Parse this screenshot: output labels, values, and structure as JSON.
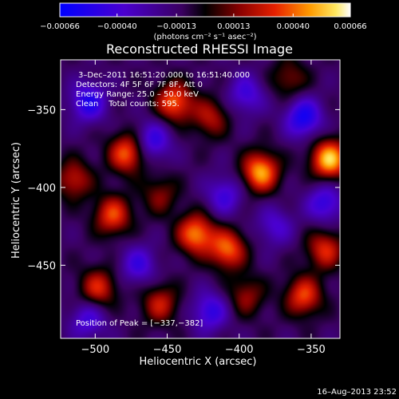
{
  "chart_data": {
    "type": "heatmap",
    "title": "Reconstructed RHESSI Image",
    "xlabel": "Heliocentric X (arcsec)",
    "ylabel": "Heliocentric Y (arcsec)",
    "xlim": [
      -524,
      -330
    ],
    "ylim": [
      -497,
      -318
    ],
    "xticks": [
      -500,
      -450,
      -400,
      -350
    ],
    "xtick_labels": [
      "−500",
      "−450",
      "−400",
      "−350"
    ],
    "yticks": [
      -350,
      -400,
      -450
    ],
    "ytick_labels": [
      "−350",
      "−400",
      "−450"
    ],
    "colorbar": {
      "range": [
        -0.00066,
        0.00066
      ],
      "ticks": [
        -0.00066,
        -0.0004,
        -0.00013,
        0.00013,
        0.0004,
        0.00066
      ],
      "tick_labels": [
        "−0.00066",
        "−0.00040",
        "−0.00013",
        "0.00013",
        "0.00040",
        "0.00066"
      ],
      "unit_label": "(photons cm⁻² s⁻¹ asec⁻²)"
    },
    "annotations": {
      "time": "3–Dec–2011 16:51:20.000 to 16:51:40.000",
      "detectors": "Detectors: 4F 5F 6F 7F 8F, Att 0",
      "energy": "Energy Range: 25.0 – 50.0 keV",
      "clean": "Clean    Total counts: 595.",
      "peak": "Position of Peak = [−337,−382]"
    },
    "sources": [
      {
        "x": -337,
        "y": -382,
        "value": 0.00066
      },
      {
        "x": -385,
        "y": -390,
        "value": 0.0006
      },
      {
        "x": -430,
        "y": -430,
        "value": 0.00055
      },
      {
        "x": -408,
        "y": -440,
        "value": 0.0005
      },
      {
        "x": -478,
        "y": -378,
        "value": 0.0005
      },
      {
        "x": -445,
        "y": -345,
        "value": 0.0005
      },
      {
        "x": -488,
        "y": -418,
        "value": 0.00045
      },
      {
        "x": -340,
        "y": -440,
        "value": 0.0004
      },
      {
        "x": -355,
        "y": -470,
        "value": 0.00045
      },
      {
        "x": -498,
        "y": -465,
        "value": 0.0004
      },
      {
        "x": -455,
        "y": -475,
        "value": 0.00035
      },
      {
        "x": -515,
        "y": -395,
        "value": 0.00035
      },
      {
        "x": -420,
        "y": -355,
        "value": 0.00032
      },
      {
        "x": -395,
        "y": -470,
        "value": 0.00028
      },
      {
        "x": -455,
        "y": -405,
        "value": 0.00025
      },
      {
        "x": -365,
        "y": -330,
        "value": 0.00025
      },
      {
        "x": -505,
        "y": -345,
        "value": -0.0004
      },
      {
        "x": -460,
        "y": -370,
        "value": -0.00035
      },
      {
        "x": -410,
        "y": -405,
        "value": -0.0003
      },
      {
        "x": -355,
        "y": -355,
        "value": -0.00045
      },
      {
        "x": -340,
        "y": -410,
        "value": -0.00035
      },
      {
        "x": -470,
        "y": -450,
        "value": -0.0003
      },
      {
        "x": -420,
        "y": -480,
        "value": -0.00035
      },
      {
        "x": -505,
        "y": -485,
        "value": -0.0003
      },
      {
        "x": -375,
        "y": -425,
        "value": -0.00025
      },
      {
        "x": -395,
        "y": -340,
        "value": -0.0003
      }
    ]
  },
  "footer": {
    "date": "16–Aug–2013 23:52"
  }
}
